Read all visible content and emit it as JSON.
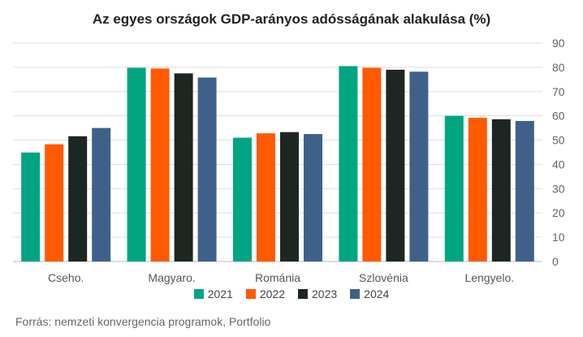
{
  "chart_data": {
    "type": "bar",
    "title": "Az egyes országok GDP-arányos adósságának alakulása (%)",
    "categories": [
      "Cseho.",
      "Magyaro.",
      "Románia",
      "Szlovénia",
      "Lengyelo."
    ],
    "series": [
      {
        "name": "2021",
        "color": "#00a582",
        "values": [
          44.9,
          79.8,
          51.0,
          80.5,
          60.0
        ]
      },
      {
        "name": "2022",
        "color": "#ff5a00",
        "values": [
          48.3,
          79.5,
          52.8,
          79.8,
          59.2
        ]
      },
      {
        "name": "2023",
        "color": "#1e2622",
        "values": [
          51.6,
          77.5,
          53.3,
          79.0,
          58.6
        ]
      },
      {
        "name": "2024",
        "color": "#3f6189",
        "values": [
          55.0,
          75.8,
          52.5,
          78.2,
          57.9
        ]
      }
    ],
    "ylim": [
      0,
      90
    ],
    "yticks": [
      0,
      10,
      20,
      30,
      40,
      50,
      60,
      70,
      80,
      90
    ],
    "y_axis_side": "right",
    "grid": true,
    "legend_position": "bottom"
  },
  "source": "Forrás: nemzeti konvergencia programok, Portfolio"
}
